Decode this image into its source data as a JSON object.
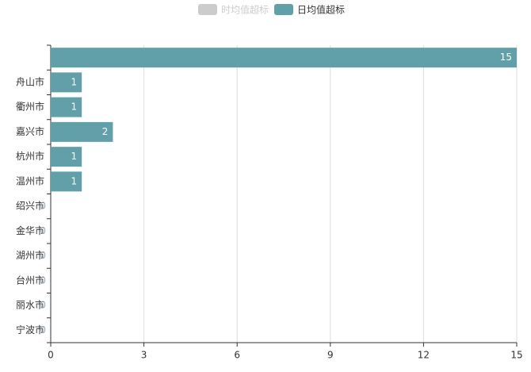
{
  "chart_data": {
    "type": "hbar",
    "categories": [
      null,
      "舟山市",
      "衢州市",
      "嘉兴市",
      "杭州市",
      "温州市",
      "绍兴市",
      "金华市",
      "湖州市",
      "台州市",
      "丽水市",
      "宁波市"
    ],
    "series": [
      {
        "name": "时均值超标",
        "color": "#cccccc",
        "hidden": true
      },
      {
        "name": "日均值超标",
        "color": "#61a0a8",
        "values": [
          15,
          1,
          1,
          2,
          1,
          1,
          0,
          0,
          0,
          0,
          0,
          0
        ]
      }
    ],
    "xlim": [
      0,
      15
    ],
    "xticks": [
      0,
      3,
      6,
      9,
      12,
      15
    ],
    "grid": true
  }
}
